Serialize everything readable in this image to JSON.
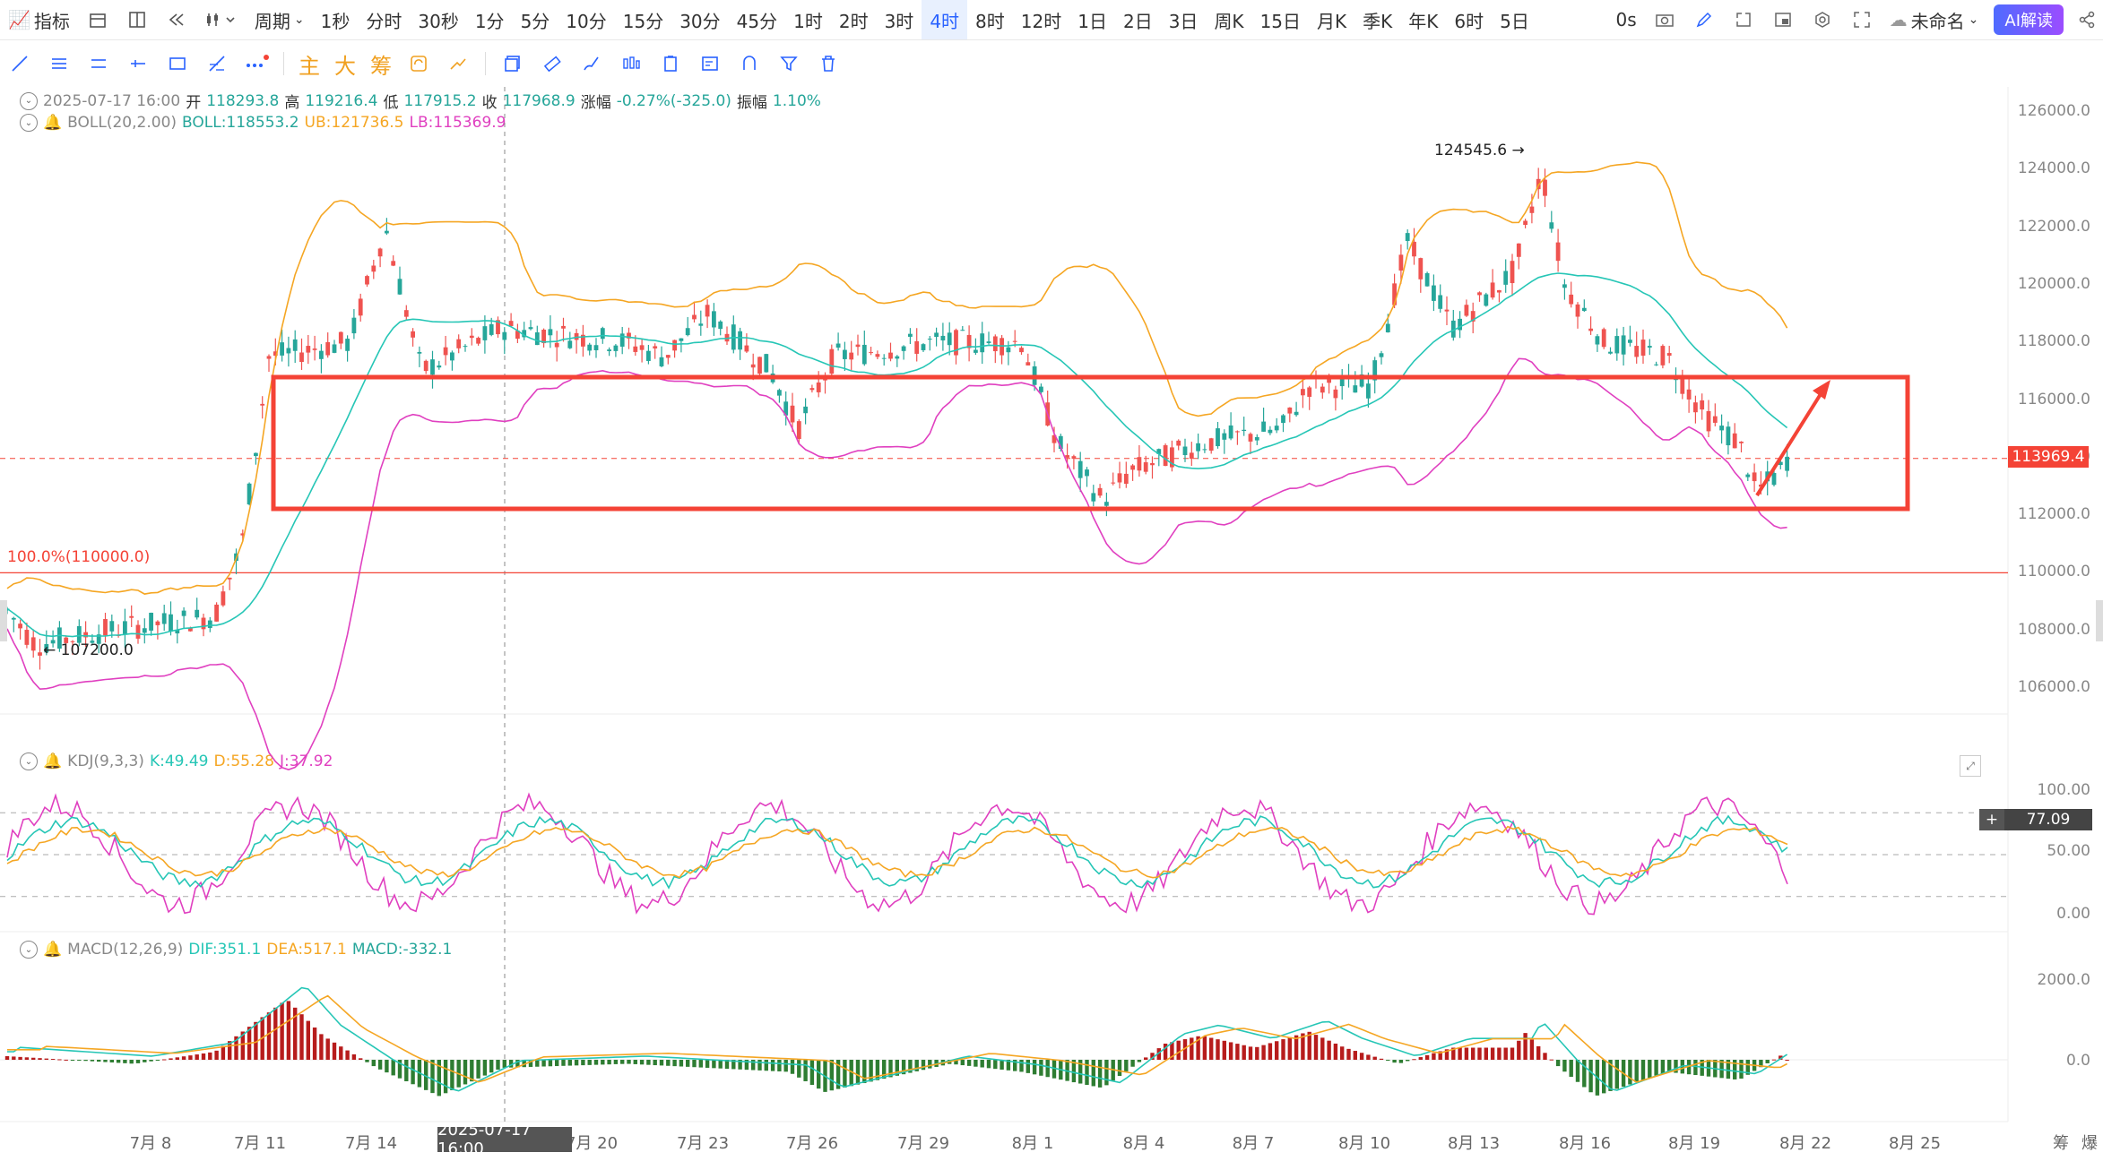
{
  "topbar": {
    "indicator_label": "指标",
    "period_label": "周期",
    "timeframes": [
      "1秒",
      "分时",
      "30秒",
      "1分",
      "5分",
      "10分",
      "15分",
      "30分",
      "45分",
      "1时",
      "2时",
      "3时",
      "4时",
      "8时",
      "12时",
      "1日",
      "2日",
      "3日",
      "周K",
      "15日",
      "月K",
      "季K",
      "年K",
      "6时",
      "5日"
    ],
    "active_timeframe": "4时",
    "right_text": "0s",
    "workspace_name": "未命名",
    "ai_button": "AI解读"
  },
  "toolbar2": {
    "text_buttons": [
      "主",
      "大",
      "筹"
    ]
  },
  "ohlc_legend": {
    "date": "2025-07-17 16:00",
    "open_label": "开",
    "open": "118293.8",
    "high_label": "高",
    "high": "119216.4",
    "low_label": "低",
    "low": "117915.2",
    "close_label": "收",
    "close": "117968.9",
    "change_label": "涨幅",
    "change": "-0.27%(-325.0)",
    "amp_label": "振幅",
    "amp": "1.10%"
  },
  "boll_legend": {
    "name": "BOLL(20,2.00)",
    "mid": "BOLL:118553.2",
    "ub": "UB:121736.5",
    "lb": "LB:115369.9"
  },
  "kdj_legend": {
    "name": "KDJ(9,3,3)",
    "k": "K:49.49",
    "d": "D:55.28",
    "j": "J:37.92"
  },
  "macd_legend": {
    "name": "MACD(12,26,9)",
    "dif": "DIF:351.1",
    "dea": "DEA:517.1",
    "macd": "MACD:-332.1"
  },
  "price_axis": [
    "126000.0",
    "124000.0",
    "122000.0",
    "120000.0",
    "118000.0",
    "116000.0",
    "114000.0",
    "112000.0",
    "110000.0",
    "108000.0",
    "106000.0"
  ],
  "current_price": "113969.4",
  "kdj_axis": [
    "100.00",
    "50.00",
    "0.00"
  ],
  "kdj_current": "77.09",
  "macd_axis": [
    "2000.0",
    "0.0"
  ],
  "dates": [
    "7月 8",
    "7月 11",
    "7月 14",
    "7月 17",
    "7月 20",
    "7月 23",
    "7月 26",
    "7月 29",
    "8月 1",
    "8月 4",
    "8月 7",
    "8月 10",
    "8月 13",
    "8月 16",
    "8月 19",
    "8月 22",
    "8月 25"
  ],
  "crosshair_date": "2025-07-17 16:00",
  "annotations": {
    "fib_label": "100.0%(110000.0)",
    "high_marker": "124545.6",
    "low_marker": "107200.0"
  },
  "footer_right": [
    "筹",
    "爆"
  ],
  "colors": {
    "up": "#26a69a",
    "down": "#ef5350",
    "boll_mid": "#26c6b6",
    "boll_up": "#f5a623",
    "boll_low": "#e040c0",
    "box": "#f44336",
    "macd_up": "#b71c1c",
    "macd_down": "#2e7d32"
  }
}
